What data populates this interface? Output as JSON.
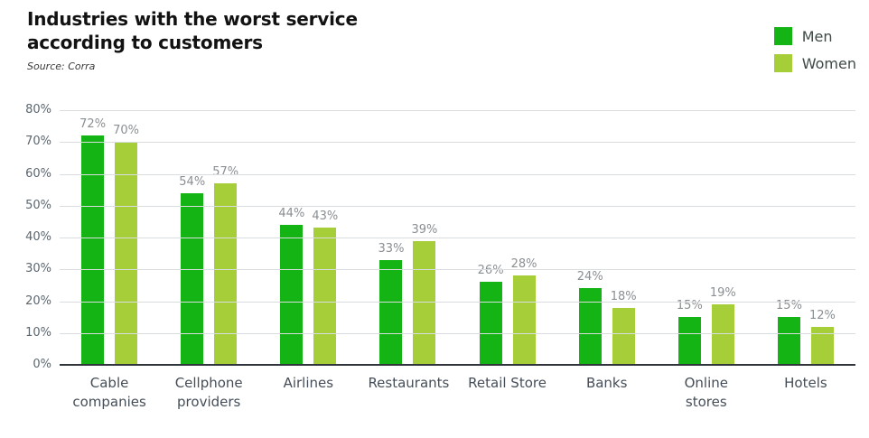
{
  "header": {
    "title_lines": [
      "Industries with the worst service",
      "according to customers"
    ],
    "source": "Source: Corra"
  },
  "chart_data": {
    "type": "bar",
    "title": "Industries with the worst service according to customers",
    "source": "Source: Corra",
    "categories": [
      "Cable companies",
      "Cellphone providers",
      "Airlines",
      "Restaurants",
      "Retail Store",
      "Banks",
      "Online stores",
      "Hotels"
    ],
    "series": [
      {
        "name": "Men",
        "color": "#13B413",
        "values": [
          72,
          54,
          44,
          33,
          26,
          24,
          15,
          15
        ]
      },
      {
        "name": "Women",
        "color": "#A6CE39",
        "values": [
          70,
          57,
          43,
          39,
          28,
          18,
          19,
          12
        ]
      }
    ],
    "value_label_suffix": "%",
    "ylim": [
      0,
      80
    ],
    "ytick_step": 10,
    "ytick_suffix": "%",
    "grid": true,
    "legend_position": "top-right",
    "colors": {
      "grid": "#dadddf",
      "axis": "#2f353b",
      "ytick_text": "#5c666e",
      "value_text": "#8a8f93",
      "category_text": "#454e58"
    }
  }
}
